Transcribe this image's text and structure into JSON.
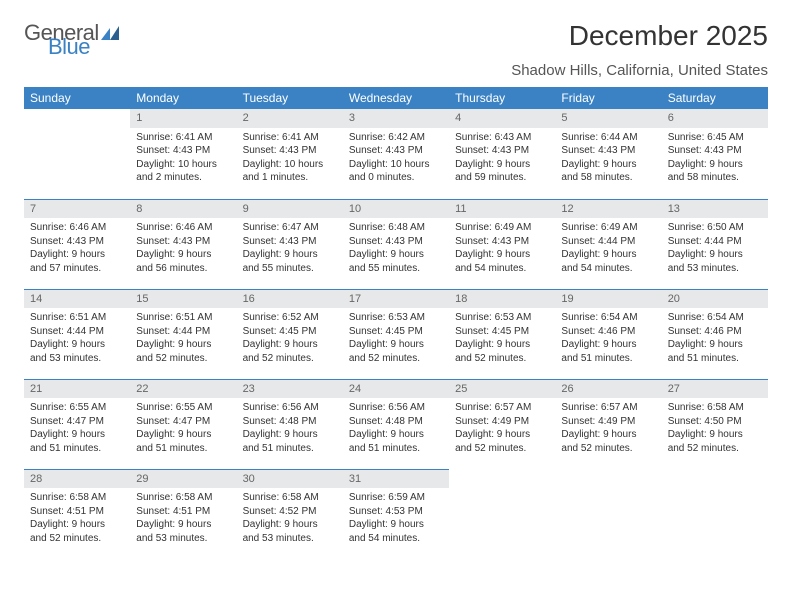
{
  "logo": {
    "part1": "General",
    "part2": "Blue"
  },
  "title": "December 2025",
  "location": "Shadow Hills, California, United States",
  "colors": {
    "header_bg": "#3b82c4",
    "header_text": "#ffffff",
    "daynum_bg": "#e7e8e9",
    "daynum_text": "#666666",
    "body_text": "#333333",
    "row_divider": "#3b82c4",
    "page_bg": "#ffffff"
  },
  "fonts": {
    "title_size_pt": 21,
    "location_size_pt": 11,
    "header_size_pt": 9,
    "cell_size_pt": 7.5
  },
  "weekdays": [
    "Sunday",
    "Monday",
    "Tuesday",
    "Wednesday",
    "Thursday",
    "Friday",
    "Saturday"
  ],
  "weeks": [
    [
      {
        "empty": true
      },
      {
        "day": "1",
        "sunrise": "Sunrise: 6:41 AM",
        "sunset": "Sunset: 4:43 PM",
        "daylight": "Daylight: 10 hours and 2 minutes."
      },
      {
        "day": "2",
        "sunrise": "Sunrise: 6:41 AM",
        "sunset": "Sunset: 4:43 PM",
        "daylight": "Daylight: 10 hours and 1 minutes."
      },
      {
        "day": "3",
        "sunrise": "Sunrise: 6:42 AM",
        "sunset": "Sunset: 4:43 PM",
        "daylight": "Daylight: 10 hours and 0 minutes."
      },
      {
        "day": "4",
        "sunrise": "Sunrise: 6:43 AM",
        "sunset": "Sunset: 4:43 PM",
        "daylight": "Daylight: 9 hours and 59 minutes."
      },
      {
        "day": "5",
        "sunrise": "Sunrise: 6:44 AM",
        "sunset": "Sunset: 4:43 PM",
        "daylight": "Daylight: 9 hours and 58 minutes."
      },
      {
        "day": "6",
        "sunrise": "Sunrise: 6:45 AM",
        "sunset": "Sunset: 4:43 PM",
        "daylight": "Daylight: 9 hours and 58 minutes."
      }
    ],
    [
      {
        "day": "7",
        "sunrise": "Sunrise: 6:46 AM",
        "sunset": "Sunset: 4:43 PM",
        "daylight": "Daylight: 9 hours and 57 minutes."
      },
      {
        "day": "8",
        "sunrise": "Sunrise: 6:46 AM",
        "sunset": "Sunset: 4:43 PM",
        "daylight": "Daylight: 9 hours and 56 minutes."
      },
      {
        "day": "9",
        "sunrise": "Sunrise: 6:47 AM",
        "sunset": "Sunset: 4:43 PM",
        "daylight": "Daylight: 9 hours and 55 minutes."
      },
      {
        "day": "10",
        "sunrise": "Sunrise: 6:48 AM",
        "sunset": "Sunset: 4:43 PM",
        "daylight": "Daylight: 9 hours and 55 minutes."
      },
      {
        "day": "11",
        "sunrise": "Sunrise: 6:49 AM",
        "sunset": "Sunset: 4:43 PM",
        "daylight": "Daylight: 9 hours and 54 minutes."
      },
      {
        "day": "12",
        "sunrise": "Sunrise: 6:49 AM",
        "sunset": "Sunset: 4:44 PM",
        "daylight": "Daylight: 9 hours and 54 minutes."
      },
      {
        "day": "13",
        "sunrise": "Sunrise: 6:50 AM",
        "sunset": "Sunset: 4:44 PM",
        "daylight": "Daylight: 9 hours and 53 minutes."
      }
    ],
    [
      {
        "day": "14",
        "sunrise": "Sunrise: 6:51 AM",
        "sunset": "Sunset: 4:44 PM",
        "daylight": "Daylight: 9 hours and 53 minutes."
      },
      {
        "day": "15",
        "sunrise": "Sunrise: 6:51 AM",
        "sunset": "Sunset: 4:44 PM",
        "daylight": "Daylight: 9 hours and 52 minutes."
      },
      {
        "day": "16",
        "sunrise": "Sunrise: 6:52 AM",
        "sunset": "Sunset: 4:45 PM",
        "daylight": "Daylight: 9 hours and 52 minutes."
      },
      {
        "day": "17",
        "sunrise": "Sunrise: 6:53 AM",
        "sunset": "Sunset: 4:45 PM",
        "daylight": "Daylight: 9 hours and 52 minutes."
      },
      {
        "day": "18",
        "sunrise": "Sunrise: 6:53 AM",
        "sunset": "Sunset: 4:45 PM",
        "daylight": "Daylight: 9 hours and 52 minutes."
      },
      {
        "day": "19",
        "sunrise": "Sunrise: 6:54 AM",
        "sunset": "Sunset: 4:46 PM",
        "daylight": "Daylight: 9 hours and 51 minutes."
      },
      {
        "day": "20",
        "sunrise": "Sunrise: 6:54 AM",
        "sunset": "Sunset: 4:46 PM",
        "daylight": "Daylight: 9 hours and 51 minutes."
      }
    ],
    [
      {
        "day": "21",
        "sunrise": "Sunrise: 6:55 AM",
        "sunset": "Sunset: 4:47 PM",
        "daylight": "Daylight: 9 hours and 51 minutes."
      },
      {
        "day": "22",
        "sunrise": "Sunrise: 6:55 AM",
        "sunset": "Sunset: 4:47 PM",
        "daylight": "Daylight: 9 hours and 51 minutes."
      },
      {
        "day": "23",
        "sunrise": "Sunrise: 6:56 AM",
        "sunset": "Sunset: 4:48 PM",
        "daylight": "Daylight: 9 hours and 51 minutes."
      },
      {
        "day": "24",
        "sunrise": "Sunrise: 6:56 AM",
        "sunset": "Sunset: 4:48 PM",
        "daylight": "Daylight: 9 hours and 51 minutes."
      },
      {
        "day": "25",
        "sunrise": "Sunrise: 6:57 AM",
        "sunset": "Sunset: 4:49 PM",
        "daylight": "Daylight: 9 hours and 52 minutes."
      },
      {
        "day": "26",
        "sunrise": "Sunrise: 6:57 AM",
        "sunset": "Sunset: 4:49 PM",
        "daylight": "Daylight: 9 hours and 52 minutes."
      },
      {
        "day": "27",
        "sunrise": "Sunrise: 6:58 AM",
        "sunset": "Sunset: 4:50 PM",
        "daylight": "Daylight: 9 hours and 52 minutes."
      }
    ],
    [
      {
        "day": "28",
        "sunrise": "Sunrise: 6:58 AM",
        "sunset": "Sunset: 4:51 PM",
        "daylight": "Daylight: 9 hours and 52 minutes."
      },
      {
        "day": "29",
        "sunrise": "Sunrise: 6:58 AM",
        "sunset": "Sunset: 4:51 PM",
        "daylight": "Daylight: 9 hours and 53 minutes."
      },
      {
        "day": "30",
        "sunrise": "Sunrise: 6:58 AM",
        "sunset": "Sunset: 4:52 PM",
        "daylight": "Daylight: 9 hours and 53 minutes."
      },
      {
        "day": "31",
        "sunrise": "Sunrise: 6:59 AM",
        "sunset": "Sunset: 4:53 PM",
        "daylight": "Daylight: 9 hours and 54 minutes."
      },
      {
        "empty": true
      },
      {
        "empty": true
      },
      {
        "empty": true
      }
    ]
  ]
}
